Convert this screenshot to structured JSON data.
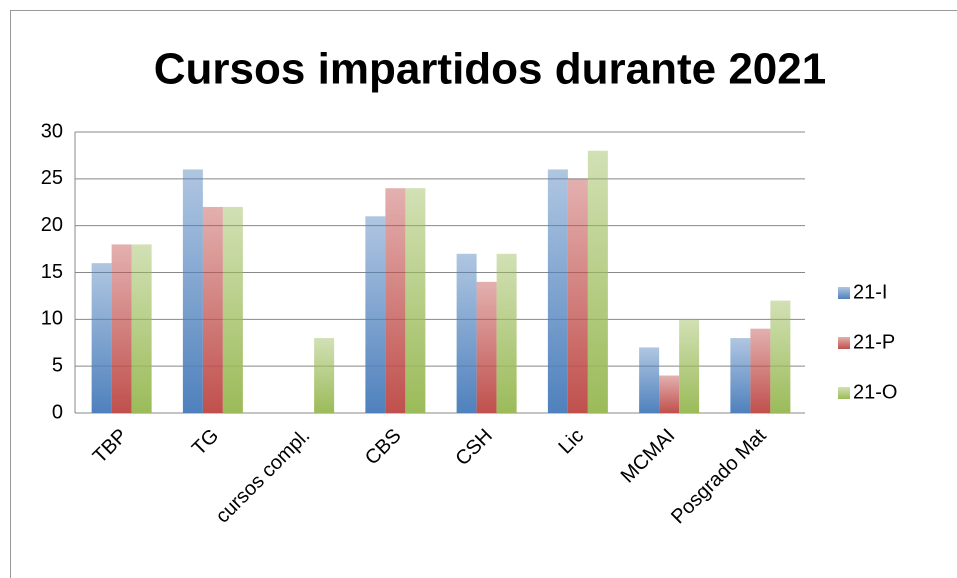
{
  "chart_data": {
    "type": "bar",
    "title": "Cursos impartidos durante 2021",
    "categories": [
      "TBP",
      "TG",
      "cursos compl.",
      "CBS",
      "CSH",
      "Lic",
      "MCMAI",
      "Posgrado Mat"
    ],
    "series": [
      {
        "name": "21-I",
        "color": "#4f81bd",
        "values": [
          16,
          26,
          0,
          21,
          17,
          26,
          7,
          8
        ]
      },
      {
        "name": "21-P",
        "color": "#c0504d",
        "values": [
          18,
          22,
          0,
          24,
          14,
          25,
          4,
          9
        ]
      },
      {
        "name": "21-O",
        "color": "#9bbb59",
        "values": [
          18,
          22,
          8,
          24,
          17,
          28,
          10,
          12
        ]
      }
    ],
    "ylim": [
      0,
      30
    ],
    "yticks": [
      0,
      5,
      10,
      15,
      20,
      25,
      30
    ],
    "grid": true,
    "legend": "right"
  }
}
